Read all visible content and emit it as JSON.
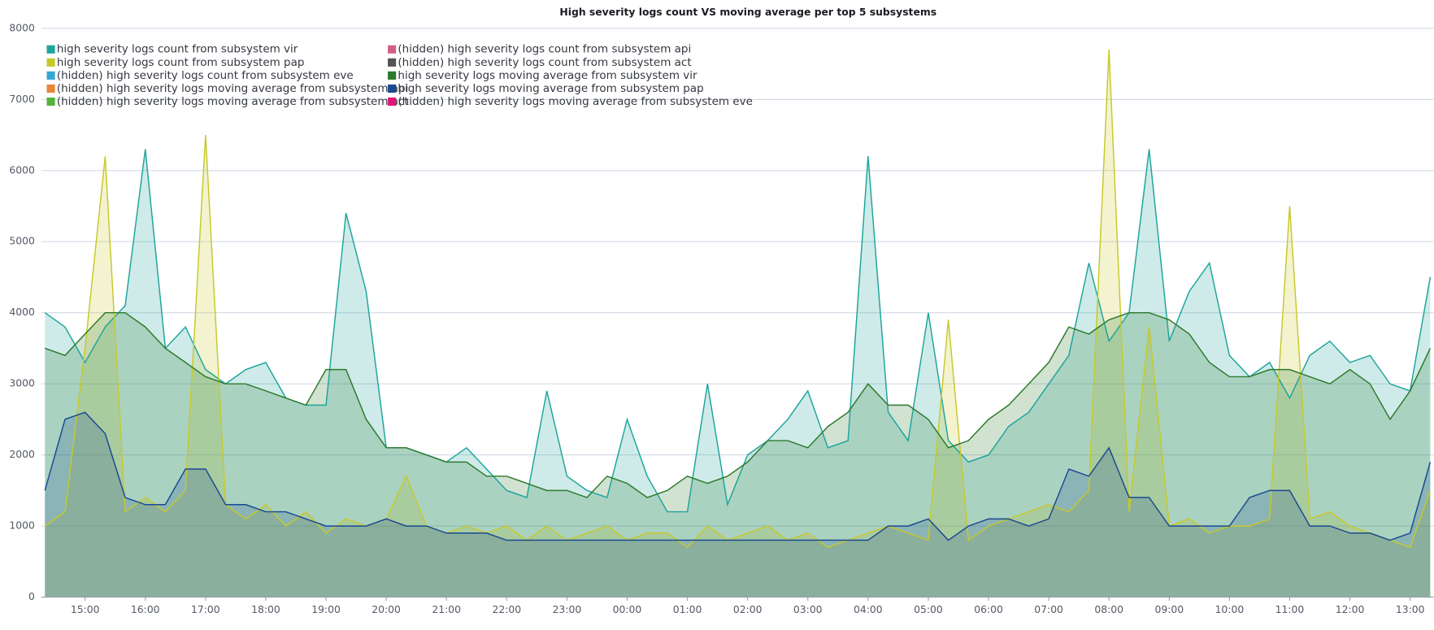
{
  "chart_data": {
    "type": "area",
    "title": "High severity logs count VS moving average per top 5 subsystems",
    "categories": [
      null,
      null,
      "15:00",
      null,
      null,
      "16:00",
      null,
      null,
      "17:00",
      null,
      null,
      "18:00",
      null,
      null,
      "19:00",
      null,
      null,
      "20:00",
      null,
      null,
      "21:00",
      null,
      null,
      "22:00",
      null,
      null,
      "23:00",
      null,
      null,
      "00:00",
      null,
      null,
      "01:00",
      null,
      null,
      "02:00",
      null,
      null,
      "03:00",
      null,
      null,
      "04:00",
      null,
      null,
      "05:00",
      null,
      null,
      "06:00",
      null,
      null,
      "07:00",
      null,
      null,
      "08:00",
      null,
      null,
      "09:00",
      null,
      null,
      "10:00",
      null,
      null,
      "11:00",
      null,
      null,
      "12:00",
      null,
      null,
      "13:00",
      null
    ],
    "ylim": [
      0,
      8000
    ],
    "yticks": [
      0,
      1000,
      2000,
      3000,
      4000,
      5000,
      6000,
      7000,
      8000
    ],
    "grid": true,
    "legend": "top-left",
    "series": [
      {
        "name": "high severity logs count from subsystem vir",
        "color": "#1ea49c",
        "values": [
          4000,
          3800,
          3300,
          3800,
          4100,
          6300,
          3500,
          3800,
          3200,
          3000,
          3200,
          3300,
          2800,
          2700,
          2700,
          5400,
          4300,
          2100,
          2100,
          2000,
          1900,
          2100,
          1800,
          1500,
          1400,
          2900,
          1700,
          1500,
          1400,
          2500,
          1700,
          1200,
          1200,
          3000,
          1300,
          2000,
          2200,
          2500,
          2900,
          2100,
          2200,
          6200,
          2600,
          2200,
          4000,
          2200,
          1900,
          2000,
          2400,
          2600,
          3000,
          3400,
          4700,
          3600,
          4000,
          6300,
          3600,
          4300,
          4700,
          3400,
          3100,
          3300,
          2800,
          3400,
          3600,
          3300,
          3400,
          3000,
          2900,
          4500
        ]
      },
      {
        "name": "(hidden) high severity logs count from subsystem api",
        "color": "#d36086"
      },
      {
        "name": "high severity logs count from subsystem pap",
        "color": "#c7c92a",
        "values": [
          1000,
          1200,
          3500,
          6200,
          1200,
          1400,
          1200,
          1500,
          6500,
          1300,
          1100,
          1300,
          1000,
          1200,
          900,
          1100,
          1000,
          1100,
          1700,
          1000,
          900,
          1000,
          900,
          1000,
          800,
          1000,
          800,
          900,
          1000,
          800,
          900,
          900,
          700,
          1000,
          800,
          900,
          1000,
          800,
          900,
          700,
          800,
          900,
          1000,
          900,
          800,
          3900,
          800,
          1000,
          1100,
          1200,
          1300,
          1200,
          1500,
          7700,
          1200,
          3800,
          1000,
          1100,
          900,
          1000,
          1000,
          1100,
          5500,
          1100,
          1200,
          1000,
          900,
          800,
          700,
          1500
        ]
      },
      {
        "name": "(hidden) high severity logs count from subsystem act",
        "color": "#545454"
      },
      {
        "name": "(hidden) high severity logs count from subsystem eve",
        "color": "#35a7d6"
      },
      {
        "name": "high severity logs moving average from subsystem vir",
        "color": "#2c7a2c",
        "values": [
          3500,
          3400,
          3700,
          4000,
          4000,
          3800,
          3500,
          3300,
          3100,
          3000,
          3000,
          2900,
          2800,
          2700,
          3200,
          3200,
          2500,
          2100,
          2100,
          2000,
          1900,
          1900,
          1700,
          1700,
          1600,
          1500,
          1500,
          1400,
          1700,
          1600,
          1400,
          1500,
          1700,
          1600,
          1700,
          1900,
          2200,
          2200,
          2100,
          2400,
          2600,
          3000,
          2700,
          2700,
          2500,
          2100,
          2200,
          2500,
          2700,
          3000,
          3300,
          3800,
          3700,
          3900,
          4000,
          4000,
          3900,
          3700,
          3300,
          3100,
          3100,
          3200,
          3200,
          3100,
          3000,
          3200,
          3000,
          2500,
          2900,
          3500
        ]
      },
      {
        "name": "(hidden) high severity logs moving average from subsystem api",
        "color": "#e7873a"
      },
      {
        "name": "high severity logs moving average from subsystem pap",
        "color": "#1a4a91",
        "values": [
          1500,
          2500,
          2600,
          2300,
          1400,
          1300,
          1300,
          1800,
          1800,
          1300,
          1300,
          1200,
          1200,
          1100,
          1000,
          1000,
          1000,
          1100,
          1000,
          1000,
          900,
          900,
          900,
          800,
          800,
          800,
          800,
          800,
          800,
          800,
          800,
          800,
          800,
          800,
          800,
          800,
          800,
          800,
          800,
          800,
          800,
          800,
          1000,
          1000,
          1100,
          800,
          1000,
          1100,
          1100,
          1000,
          1100,
          1800,
          1700,
          2100,
          1400,
          1400,
          1000,
          1000,
          1000,
          1000,
          1400,
          1500,
          1500,
          1000,
          1000,
          900,
          900,
          800,
          900,
          1900
        ]
      },
      {
        "name": "(hidden) high severity logs moving average from subsystem act",
        "color": "#54b339"
      },
      {
        "name": "(hidden) high severity logs moving average from subsystem eve",
        "color": "#e0157a"
      }
    ]
  }
}
